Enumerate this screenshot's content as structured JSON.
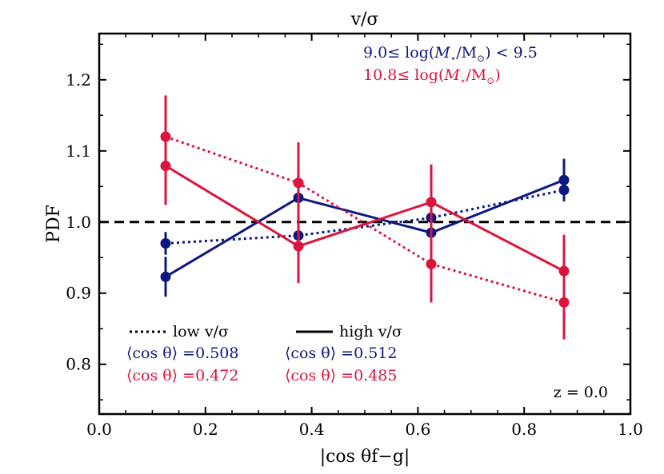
{
  "chart_data": {
    "type": "line",
    "title": "v/σ",
    "xlabel": "|cos θf−g|",
    "ylabel": "PDF",
    "xlim": [
      0.0,
      1.0
    ],
    "ylim": [
      0.73,
      1.265
    ],
    "xticks": [
      0.0,
      0.2,
      0.4,
      0.6,
      0.8,
      1.0
    ],
    "xtick_labels": [
      "0.0",
      "0.2",
      "0.4",
      "0.6",
      "0.8",
      "1.0"
    ],
    "yticks": [
      0.8,
      0.9,
      1.0,
      1.1,
      1.2
    ],
    "ytick_labels": [
      "0.8",
      "0.9",
      "1.0",
      "1.1",
      "1.2"
    ],
    "reference_line": {
      "y": 1.0,
      "style": "dashed",
      "color": "#000000"
    },
    "x": [
      0.125,
      0.375,
      0.625,
      0.875
    ],
    "series": [
      {
        "name": "low mass, low v/σ",
        "color": "#0d1780",
        "style": "dotted",
        "values": [
          0.97,
          0.981,
          1.006,
          1.045
        ],
        "err": [
          0.016,
          0.008,
          0.011,
          0.016
        ]
      },
      {
        "name": "low mass, high v/σ",
        "color": "#0d1780",
        "style": "solid",
        "values": [
          0.923,
          1.034,
          0.985,
          1.059
        ],
        "err": [
          0.028,
          0.022,
          0.022,
          0.03
        ]
      },
      {
        "name": "high mass, low v/σ",
        "color": "#dc143c",
        "style": "dotted",
        "values": [
          1.12,
          1.055,
          0.941,
          0.887
        ],
        "err": [
          0.058,
          0.057,
          0.054,
          0.052
        ]
      },
      {
        "name": "high mass, high v/σ",
        "color": "#dc143c",
        "style": "solid",
        "values": [
          1.079,
          0.966,
          1.028,
          0.931
        ],
        "err": [
          0.055,
          0.052,
          0.053,
          0.051
        ]
      }
    ],
    "mass_bins": [
      {
        "prefix": "9.0≤ log(",
        "mstar": "M",
        "star": "⋆",
        "sep": "/M",
        "sun": "⊙",
        "suffix": ") < 9.5",
        "color": "#0d1780"
      },
      {
        "prefix": "10.8≤ log(",
        "mstar": "M",
        "star": "⋆",
        "sep": "/M",
        "sun": "⊙",
        "suffix": ")",
        "color": "#dc143c"
      }
    ],
    "legend": {
      "low_label": "low v/σ",
      "high_label": "high v/σ",
      "low_means": [
        {
          "text": "⟨cos θ⟩ =0.508",
          "color": "#0d1780"
        },
        {
          "text": "⟨cos θ⟩ =0.472",
          "color": "#dc143c"
        }
      ],
      "high_means": [
        {
          "text": "⟨cos θ⟩ =0.512",
          "color": "#0d1780"
        },
        {
          "text": "⟨cos θ⟩ =0.485",
          "color": "#dc143c"
        }
      ]
    },
    "redshift_label": "z = 0.0",
    "grid": false
  }
}
